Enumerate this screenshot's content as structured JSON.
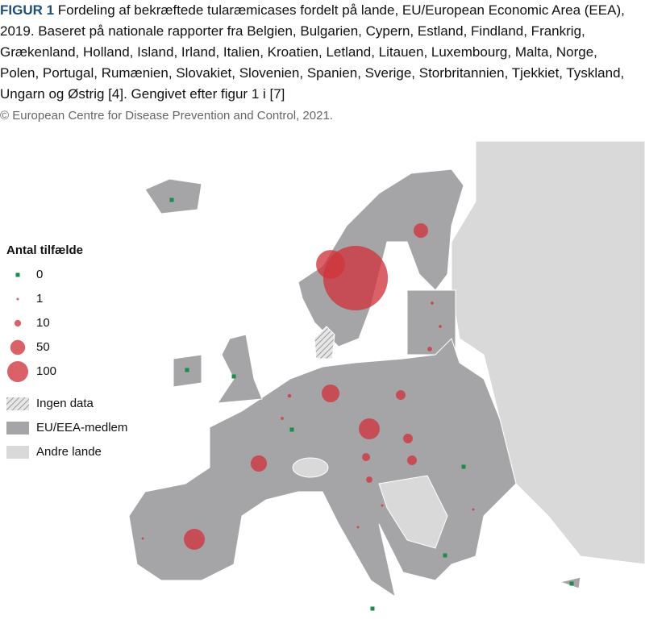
{
  "figure": {
    "label": "FIGUR 1",
    "caption": "Fordeling af bekræftede tularæmicases fordelt på lande, EU/European Economic Area (EEA), 2019. Baseret på nationale rapporter fra Belgien, Bulgarien, Cypern, Estland, Findland, Frankrig, Grækenland, Holland, Island, Irland, Italien, Kroatien, Letland, Litauen, Luxembourg, Malta, Norge, Polen, Portugal, Rumænien, Slovakiet, Slovenien, Spanien, Sverige, Storbritannien, Tjekkiet, Tyskland, Ungarn og Østrig [4]. Gengivet efter figur 1 i [7]",
    "credit": "© European Centre for Disease Prevention and Control, 2021."
  },
  "legend": {
    "title": "Antal tilfælde",
    "sizes": [
      {
        "value": 0,
        "label": "0"
      },
      {
        "value": 1,
        "label": "1"
      },
      {
        "value": 10,
        "label": "10"
      },
      {
        "value": 50,
        "label": "50"
      },
      {
        "value": 100,
        "label": "100"
      }
    ],
    "areas": [
      "Ingen data",
      "EU/EEA-medlem",
      "Andre lande"
    ]
  },
  "cases": [
    950,
    190,
    48,
    2,
    2,
    5,
    72,
    21,
    3,
    2,
    0,
    100,
    21,
    15,
    21,
    9,
    1,
    1,
    60,
    100,
    1,
    1,
    0,
    0,
    0,
    0,
    0,
    0,
    0
  ]
}
